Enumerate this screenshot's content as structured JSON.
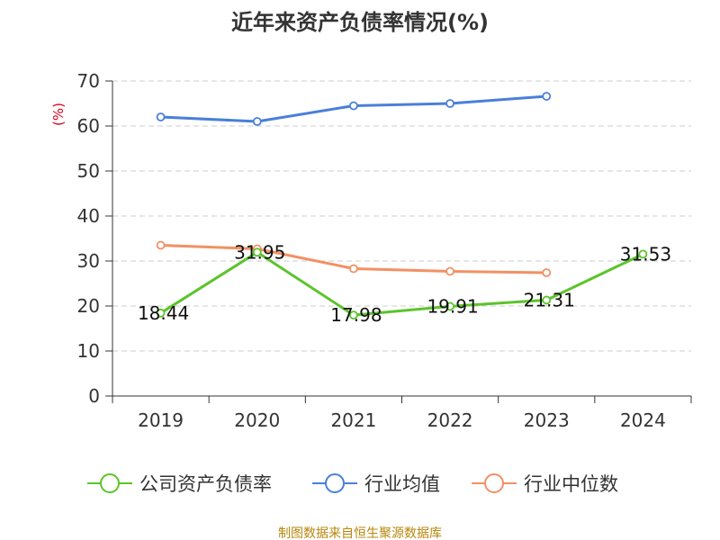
{
  "chart_data": {
    "type": "line",
    "title": "近年来资产负债率情况(%)",
    "ylabel": "(%)",
    "xlabel": "",
    "categories": [
      "2019",
      "2020",
      "2021",
      "2022",
      "2023",
      "2024"
    ],
    "ylim": [
      0,
      70
    ],
    "yticks": [
      0,
      10,
      20,
      30,
      40,
      50,
      60,
      70
    ],
    "grid": true,
    "legend_position": "bottom",
    "series": [
      {
        "name": "公司资产负债率",
        "color": "#5cc42b",
        "values": [
          18.44,
          31.95,
          17.98,
          19.91,
          21.31,
          31.53
        ],
        "labels": [
          "18.44",
          "31.95",
          "17.98",
          "19.91",
          "21.31",
          "31.53"
        ]
      },
      {
        "name": "行业均值",
        "color": "#4a7fdb",
        "values": [
          62.0,
          61.0,
          64.5,
          65.0,
          66.6,
          null
        ]
      },
      {
        "name": "行业中位数",
        "color": "#f39064",
        "values": [
          33.5,
          32.7,
          28.3,
          27.7,
          27.4,
          null
        ]
      }
    ]
  },
  "source": "制图数据来自恒生聚源数据库"
}
